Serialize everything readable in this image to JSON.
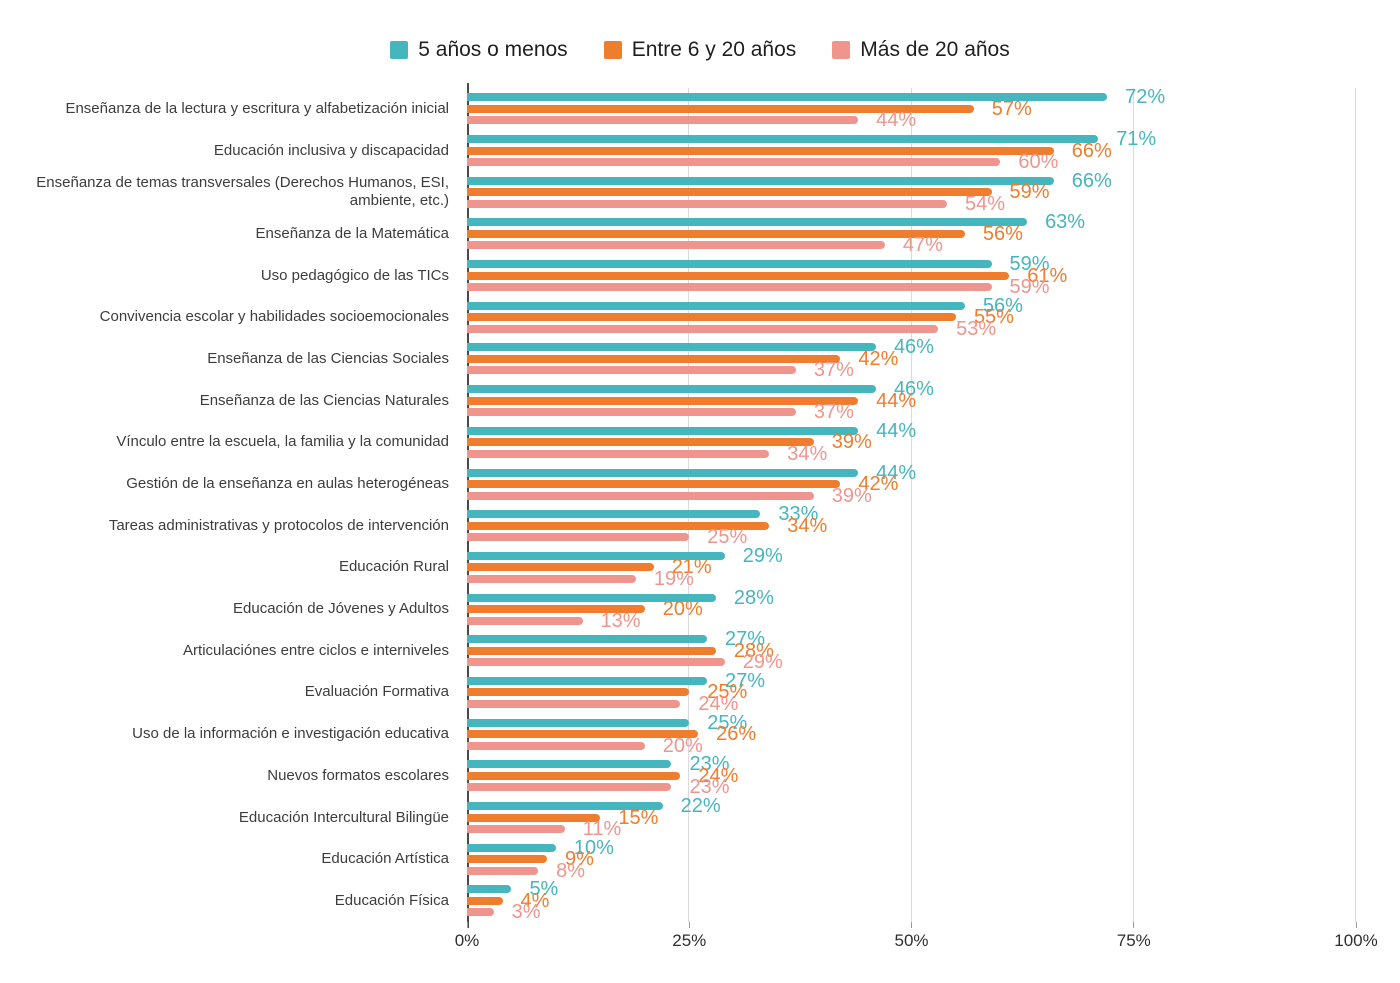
{
  "chart_data": {
    "type": "bar",
    "orientation": "horizontal",
    "title": "",
    "xlabel": "",
    "ylabel": "",
    "xlim": [
      0,
      100
    ],
    "grid": true,
    "legend_position": "top",
    "value_label_suffix": "%",
    "x_ticks": [
      {
        "value": 0,
        "label": "0%"
      },
      {
        "value": 25,
        "label": "25%"
      },
      {
        "value": 50,
        "label": "50%"
      },
      {
        "value": 75,
        "label": "75%"
      },
      {
        "value": 100,
        "label": "100%"
      }
    ],
    "gridline_values": [
      25,
      50,
      75,
      100
    ],
    "categories": [
      "Enseñanza de la lectura y escritura y alfabetización inicial",
      "Educación inclusiva y discapacidad",
      "Enseñanza de temas transversales (Derechos Humanos, ESI, ambiente, etc.)",
      "Enseñanza de la Matemática",
      "Uso pedagógico de las TICs",
      "Convivencia escolar y habilidades socioemocionales",
      "Enseñanza de las Ciencias Sociales",
      "Enseñanza de las Ciencias Naturales",
      "Vínculo entre la escuela, la familia y la comunidad",
      "Gestión de la enseñanza en aulas heterogéneas",
      "Tareas administrativas y protocolos de intervención",
      "Educación Rural",
      "Educación de Jóvenes y Adultos",
      "Articulaciónes entre ciclos e interniveles",
      "Evaluación Formativa",
      "Uso de la información e investigación educativa",
      "Nuevos formatos escolares",
      "Educación Intercultural Bilingüe",
      "Educación Artística",
      "Educación Física"
    ],
    "series": [
      {
        "name": "5 años o menos",
        "color": "#45B6BE",
        "values": [
          72,
          71,
          66,
          63,
          59,
          56,
          46,
          46,
          44,
          44,
          33,
          29,
          28,
          27,
          27,
          25,
          23,
          22,
          10,
          5
        ]
      },
      {
        "name": "Entre 6 y 20 años",
        "color": "#EE7D2D",
        "values": [
          57,
          66,
          59,
          56,
          61,
          55,
          42,
          44,
          39,
          42,
          34,
          21,
          20,
          28,
          25,
          26,
          24,
          15,
          9,
          4
        ]
      },
      {
        "name": "Más de 20 años",
        "color": "#F0958E",
        "values": [
          44,
          60,
          54,
          47,
          59,
          53,
          37,
          37,
          34,
          39,
          25,
          19,
          13,
          29,
          24,
          20,
          23,
          11,
          8,
          3
        ]
      }
    ]
  },
  "colors": {
    "gridline": "#dadada",
    "axis_line": "#4a4a4a",
    "category_text": "#3d3d3d",
    "tick_text": "#2e2e2e",
    "background": "#ffffff"
  }
}
